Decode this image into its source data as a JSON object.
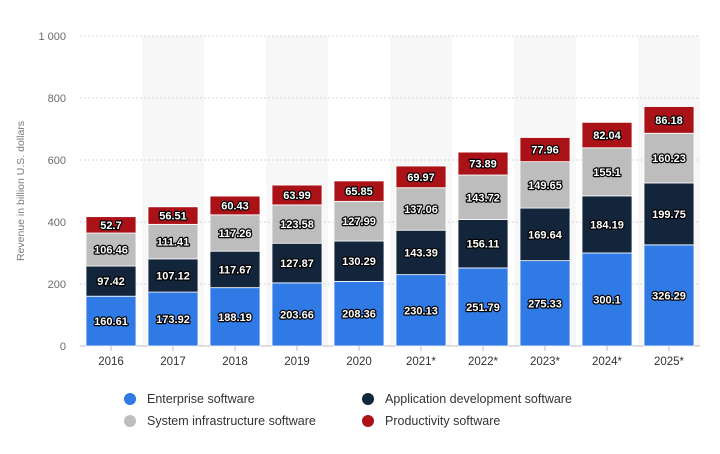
{
  "chart_data": {
    "type": "bar",
    "stacked": true,
    "title": "",
    "xlabel": "",
    "ylabel": "Revenue in billion U.S. dollars",
    "ylim": [
      0,
      1000
    ],
    "yticks": [
      0,
      200,
      400,
      600,
      800,
      1000
    ],
    "ytick_labels": [
      "0",
      "200",
      "400",
      "600",
      "800",
      "1 000"
    ],
    "grid": true,
    "legend_position": "bottom",
    "categories": [
      "2016",
      "2017",
      "2018",
      "2019",
      "2020",
      "2021*",
      "2022*",
      "2023*",
      "2024*",
      "2025*"
    ],
    "series": [
      {
        "name": "Enterprise software",
        "color": "#2f7ae5",
        "values": [
          160.61,
          173.92,
          188.19,
          203.66,
          208.36,
          230.13,
          251.79,
          275.33,
          300.1,
          326.29
        ],
        "labels": [
          "160.61",
          "173.92",
          "188.19",
          "203.66",
          "208.36",
          "230.13",
          "251.79",
          "275.33",
          "300.1",
          "326.29"
        ]
      },
      {
        "name": "Application development software",
        "color": "#13253b",
        "values": [
          97.42,
          107.12,
          117.67,
          127.87,
          130.29,
          143.39,
          156.11,
          169.64,
          184.19,
          199.75
        ],
        "labels": [
          "97.42",
          "107.12",
          "117.67",
          "127.87",
          "130.29",
          "143.39",
          "156.11",
          "169.64",
          "184.19",
          "199.75"
        ]
      },
      {
        "name": "System infrastructure software",
        "color": "#bdbdbd",
        "values": [
          106.46,
          111.41,
          117.26,
          123.58,
          127.99,
          137.06,
          143.72,
          149.65,
          155.1,
          160.23
        ],
        "labels": [
          "106.46",
          "111.41",
          "117.26",
          "123.58",
          "127.99",
          "137.06",
          "143.72",
          "149.65",
          "155.1",
          "160.23"
        ]
      },
      {
        "name": "Productivity software",
        "color": "#aa1217",
        "values": [
          52.7,
          56.51,
          60.43,
          63.99,
          65.85,
          69.97,
          73.89,
          77.96,
          82.04,
          86.18
        ],
        "labels": [
          "52.7",
          "56.51",
          "60.43",
          "63.99",
          "65.85",
          "69.97",
          "73.89",
          "77.96",
          "82.04",
          "86.18"
        ]
      }
    ]
  }
}
